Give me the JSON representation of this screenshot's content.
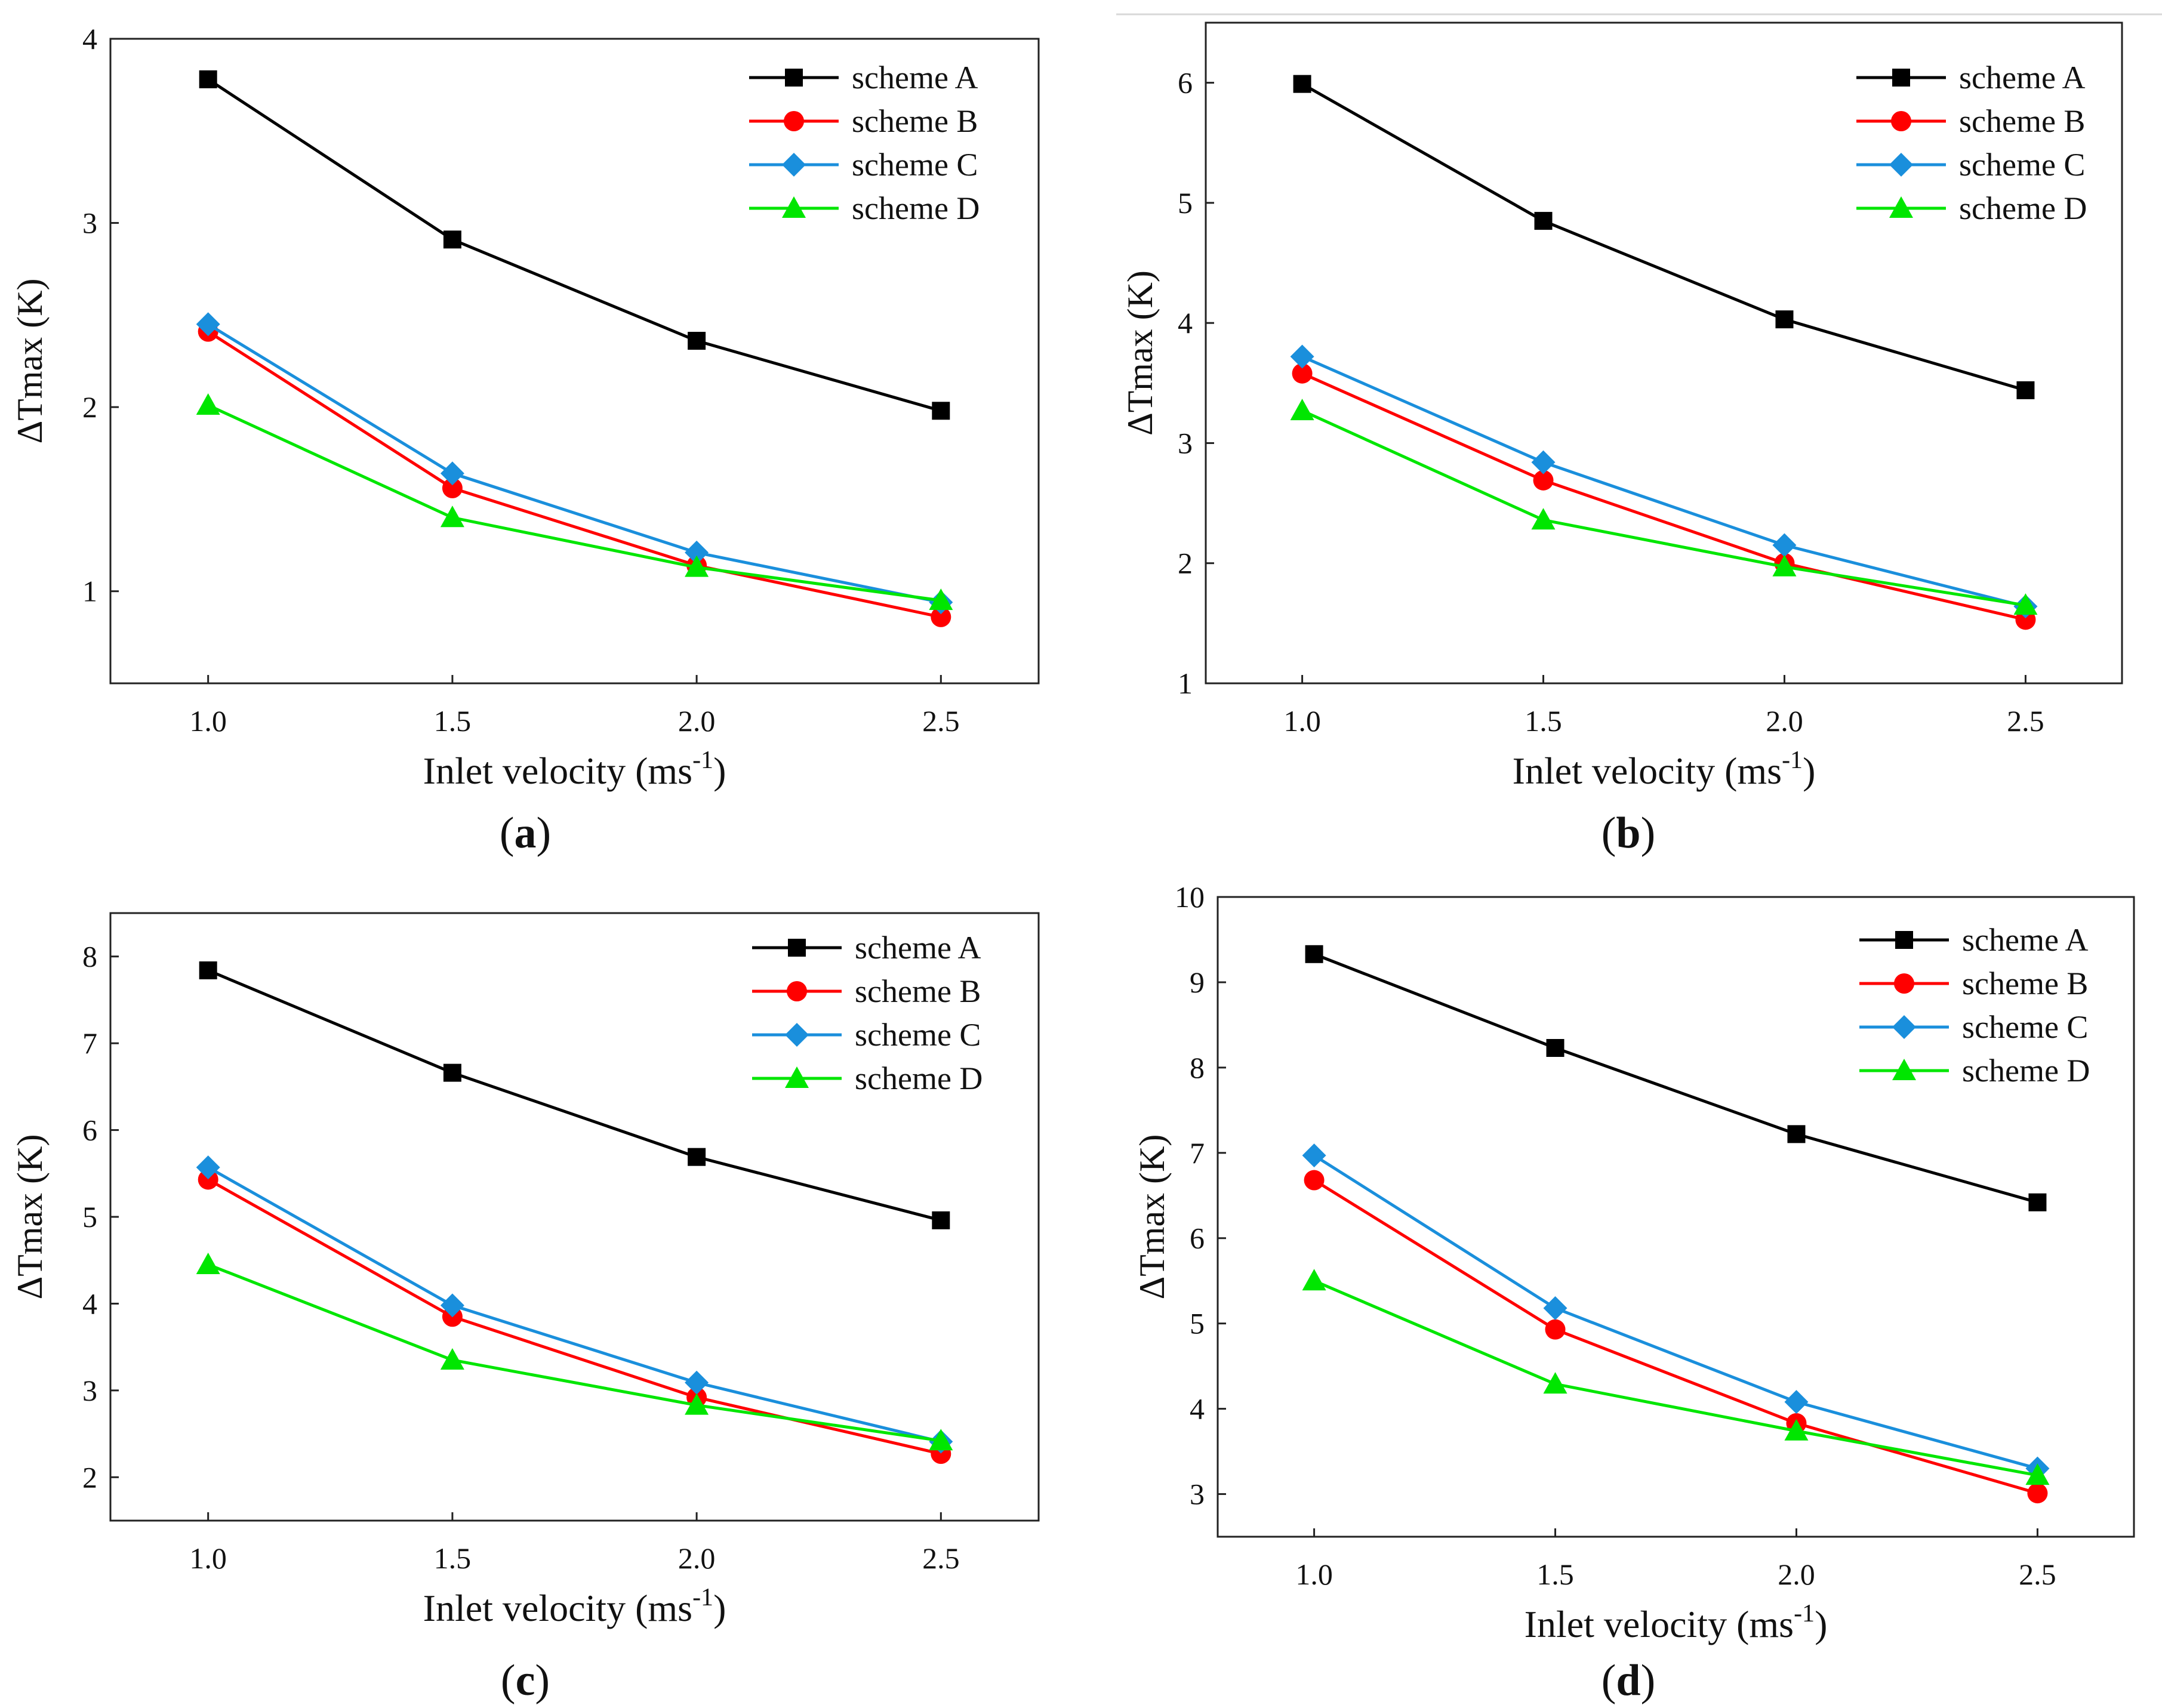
{
  "series_colors": {
    "scheme A": "#000000",
    "scheme B": "#ff0000",
    "scheme C": "#1a8fdc",
    "scheme D": "#00e600"
  },
  "chart_data": [
    {
      "type": "line",
      "panel_label": "a",
      "xlabel": "Inlet velocity (ms",
      "xlabel_sup": "-1",
      "xlabel_close": ")",
      "ylabel": "ΔTmax (K)",
      "x": [
        1.0,
        1.5,
        2.0,
        2.5
      ],
      "x_tick_labels": [
        "1.0",
        "1.5",
        "2.0",
        "2.5"
      ],
      "xlim": [
        0.8,
        2.7
      ],
      "ylim": [
        0.5,
        4.0
      ],
      "y_ticks": [
        1,
        2,
        3,
        4
      ],
      "legend_position": "top-right",
      "grid": false,
      "series": [
        {
          "name": "scheme A",
          "marker": "square",
          "values": [
            3.78,
            2.91,
            2.36,
            1.98
          ]
        },
        {
          "name": "scheme B",
          "marker": "circle",
          "values": [
            2.41,
            1.56,
            1.14,
            0.86
          ]
        },
        {
          "name": "scheme C",
          "marker": "diamond",
          "values": [
            2.45,
            1.64,
            1.21,
            0.94
          ]
        },
        {
          "name": "scheme D",
          "marker": "triangle",
          "values": [
            2.01,
            1.4,
            1.13,
            0.95
          ]
        }
      ]
    },
    {
      "type": "line",
      "panel_label": "b",
      "xlabel": "Inlet velocity (ms",
      "xlabel_sup": "-1",
      "xlabel_close": ")",
      "ylabel": "ΔTmax (K)",
      "x": [
        1.0,
        1.5,
        2.0,
        2.5
      ],
      "x_tick_labels": [
        "1.0",
        "1.5",
        "2.0",
        "2.5"
      ],
      "xlim": [
        0.8,
        2.7
      ],
      "ylim": [
        1.0,
        6.5
      ],
      "y_ticks": [
        1,
        2,
        3,
        4,
        5,
        6
      ],
      "legend_position": "top-right",
      "grid": false,
      "series": [
        {
          "name": "scheme A",
          "marker": "square",
          "values": [
            5.99,
            4.85,
            4.03,
            3.44
          ]
        },
        {
          "name": "scheme B",
          "marker": "circle",
          "values": [
            3.58,
            2.69,
            2.0,
            1.53
          ]
        },
        {
          "name": "scheme C",
          "marker": "diamond",
          "values": [
            3.72,
            2.84,
            2.15,
            1.64
          ]
        },
        {
          "name": "scheme D",
          "marker": "triangle",
          "values": [
            3.27,
            2.36,
            1.97,
            1.65
          ]
        }
      ]
    },
    {
      "type": "line",
      "panel_label": "c",
      "xlabel": "Inlet velocity (ms",
      "xlabel_sup": "-1",
      "xlabel_close": ")",
      "ylabel": "ΔTmax (K)",
      "x": [
        1.0,
        1.5,
        2.0,
        2.5
      ],
      "x_tick_labels": [
        "1.0",
        "1.5",
        "2.0",
        "2.5"
      ],
      "xlim": [
        0.8,
        2.7
      ],
      "ylim": [
        1.5,
        8.5
      ],
      "y_ticks": [
        2,
        3,
        4,
        5,
        6,
        7,
        8
      ],
      "legend_position": "top-right",
      "grid": false,
      "series": [
        {
          "name": "scheme A",
          "marker": "square",
          "values": [
            7.84,
            6.66,
            5.69,
            4.96
          ]
        },
        {
          "name": "scheme B",
          "marker": "circle",
          "values": [
            5.43,
            3.85,
            2.92,
            2.27
          ]
        },
        {
          "name": "scheme C",
          "marker": "diamond",
          "values": [
            5.57,
            3.98,
            3.09,
            2.41
          ]
        },
        {
          "name": "scheme D",
          "marker": "triangle",
          "values": [
            4.45,
            3.35,
            2.83,
            2.42
          ]
        }
      ]
    },
    {
      "type": "line",
      "panel_label": "d",
      "xlabel": "Inlet velocity (ms",
      "xlabel_sup": "-1",
      "xlabel_close": ")",
      "ylabel": "ΔTmax (K)",
      "x": [
        1.0,
        1.5,
        2.0,
        2.5
      ],
      "x_tick_labels": [
        "1.0",
        "1.5",
        "2.0",
        "2.5"
      ],
      "xlim": [
        0.8,
        2.7
      ],
      "ylim": [
        2.5,
        10.0
      ],
      "y_ticks": [
        3,
        4,
        5,
        6,
        7,
        8,
        9,
        10
      ],
      "legend_position": "top-right",
      "grid": false,
      "series": [
        {
          "name": "scheme A",
          "marker": "square",
          "values": [
            9.33,
            8.23,
            7.22,
            6.42
          ]
        },
        {
          "name": "scheme B",
          "marker": "circle",
          "values": [
            6.68,
            4.93,
            3.83,
            3.01
          ]
        },
        {
          "name": "scheme C",
          "marker": "diamond",
          "values": [
            6.97,
            5.18,
            4.08,
            3.3
          ]
        },
        {
          "name": "scheme D",
          "marker": "triangle",
          "values": [
            5.5,
            4.29,
            3.74,
            3.22
          ]
        }
      ]
    }
  ]
}
